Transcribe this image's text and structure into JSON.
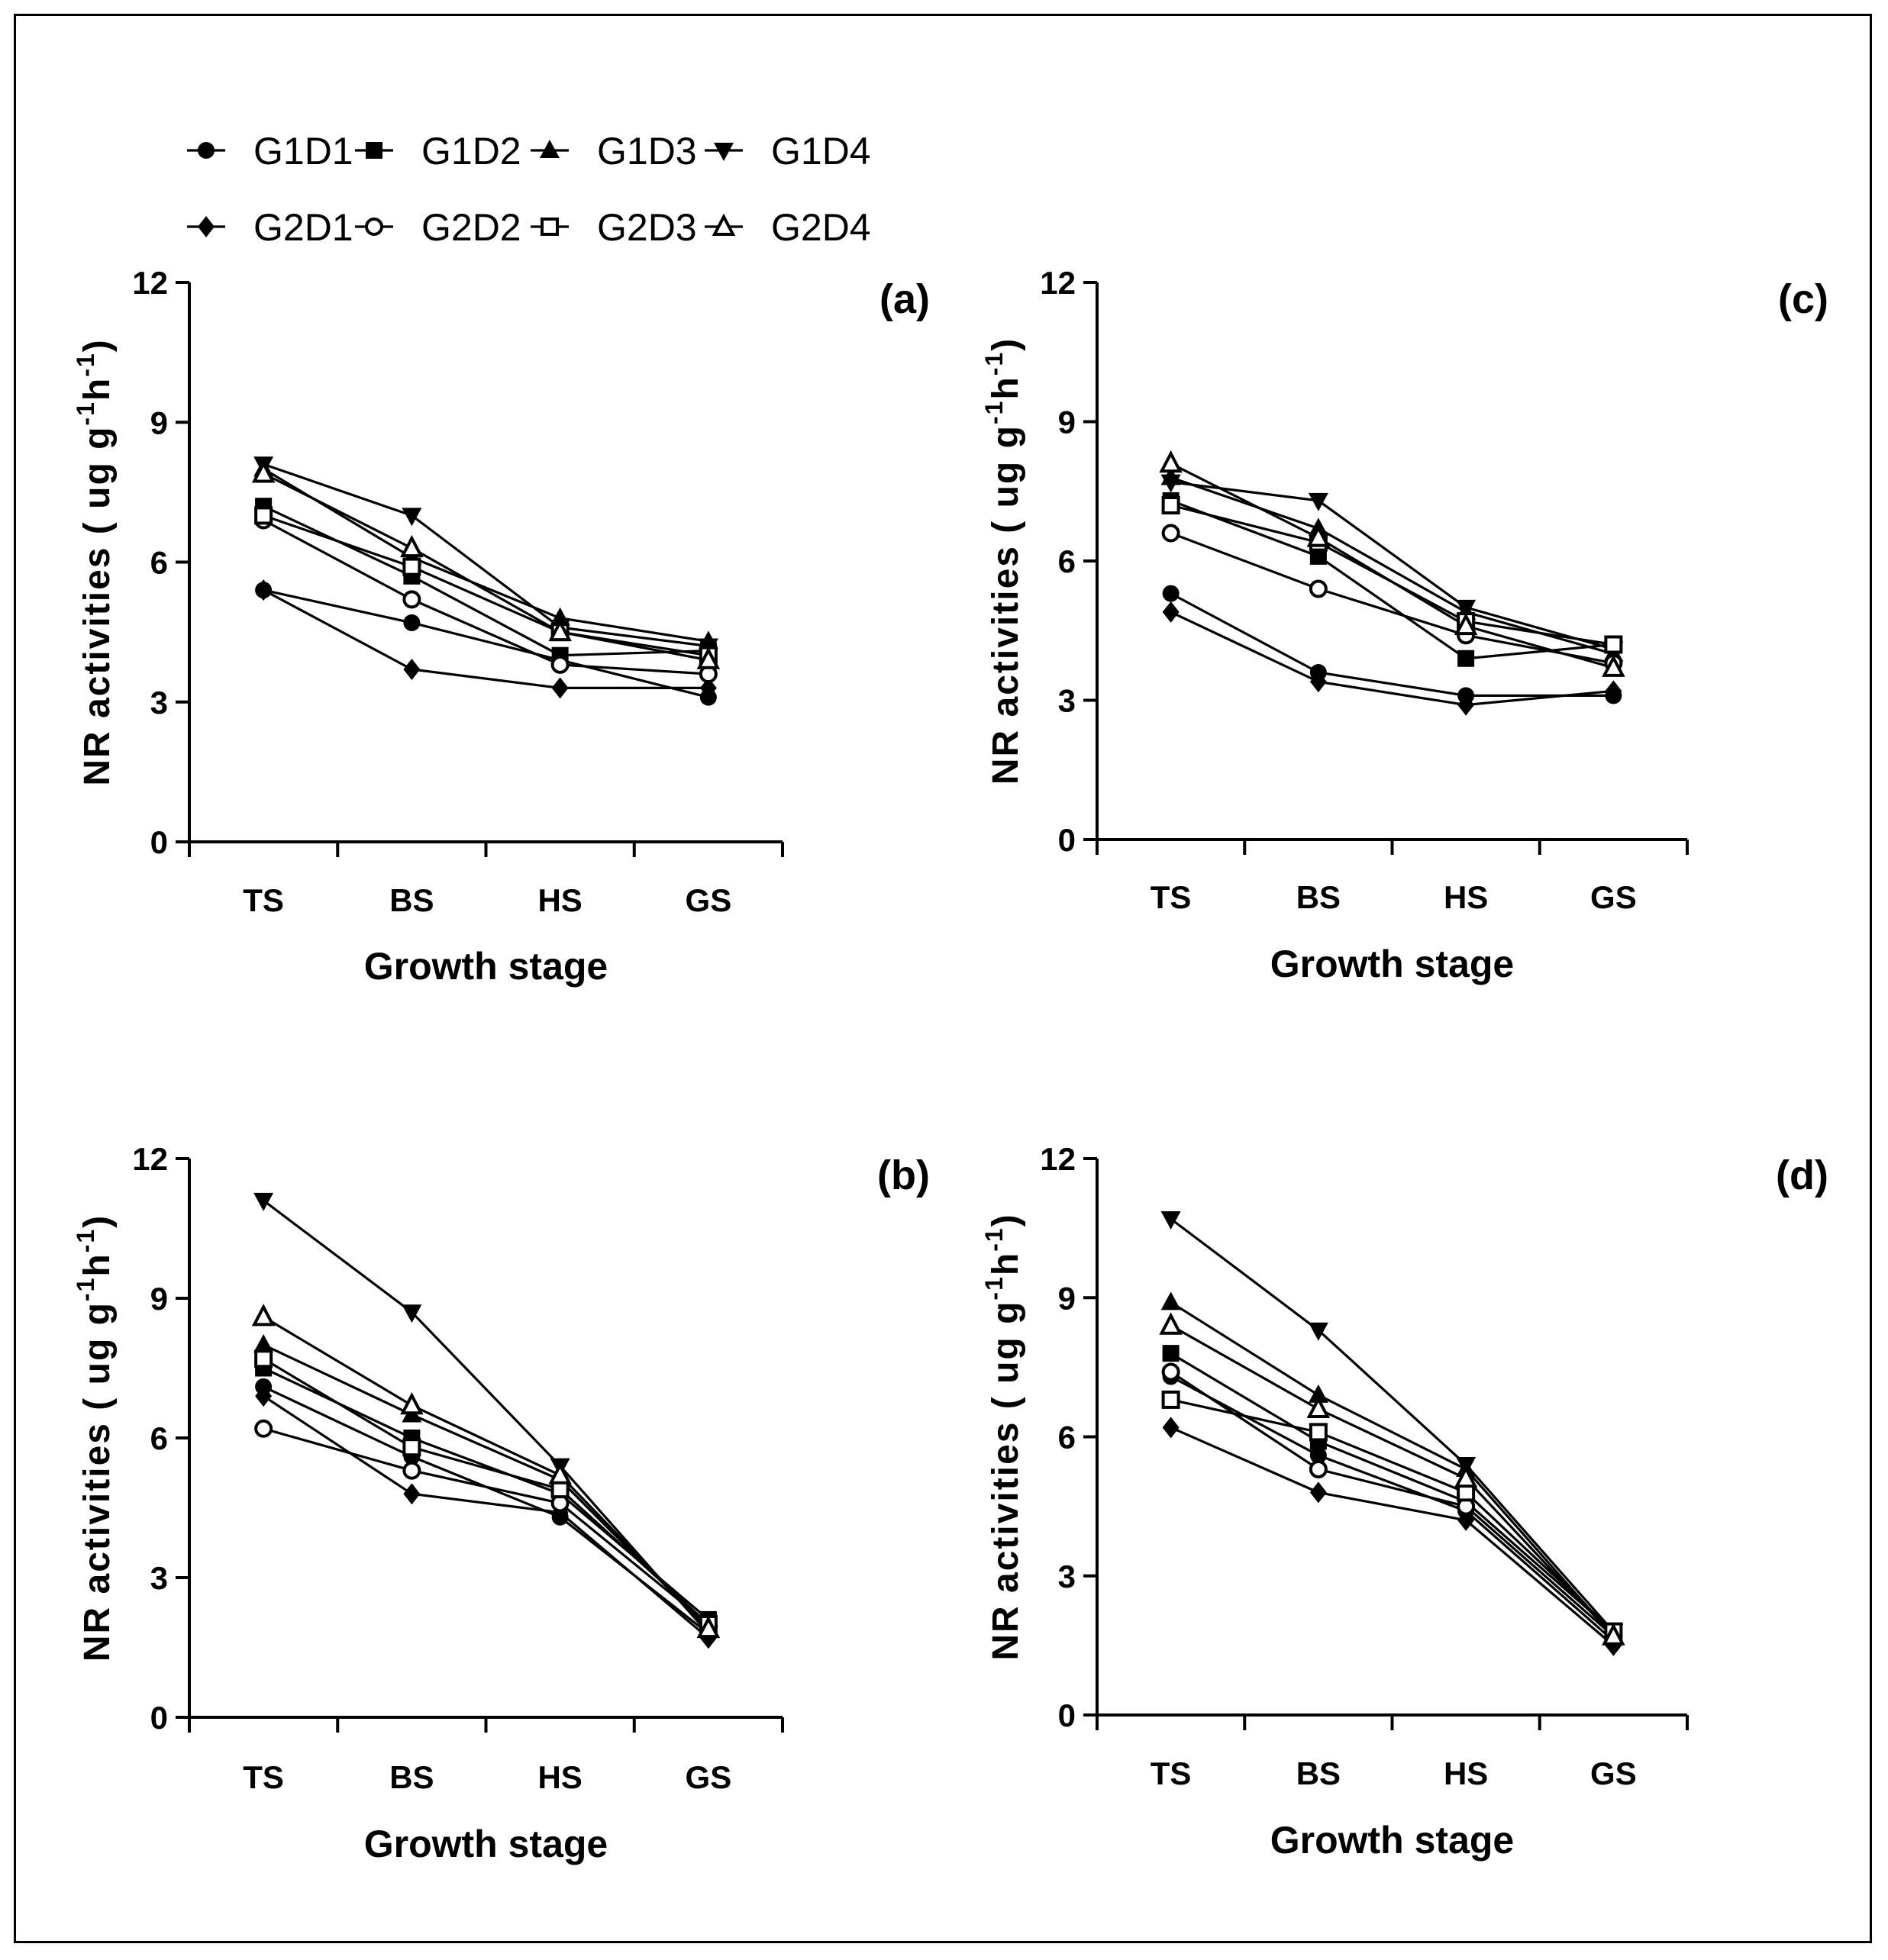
{
  "legend": {
    "items": [
      {
        "key": "G1D1",
        "label": "G1D1",
        "marker": "circle-filled"
      },
      {
        "key": "G1D2",
        "label": "G1D2",
        "marker": "square-filled"
      },
      {
        "key": "G1D3",
        "label": "G1D3",
        "marker": "triangle-up-filled"
      },
      {
        "key": "G1D4",
        "label": "G1D4",
        "marker": "triangle-down-filled"
      },
      {
        "key": "G2D1",
        "label": "G2D1",
        "marker": "diamond-filled"
      },
      {
        "key": "G2D2",
        "label": "G2D2",
        "marker": "circle-open"
      },
      {
        "key": "G2D3",
        "label": "G2D3",
        "marker": "square-open"
      },
      {
        "key": "G2D4",
        "label": "G2D4",
        "marker": "triangle-up-open"
      }
    ]
  },
  "chart_data": [
    {
      "type": "line",
      "panel_label": "(a)",
      "xlabel": "Growth stage",
      "ylabel_main": "NR activities",
      "ylabel_unit": "( ug g-1h-1)",
      "ylabel_parts": [
        "NR activities",
        "( ug g",
        "-1",
        "h",
        "-1",
        ")"
      ],
      "categories": [
        "TS",
        "BS",
        "HS",
        "GS"
      ],
      "ylim": [
        0,
        12
      ],
      "yticks": [
        0,
        3,
        6,
        9,
        12
      ],
      "ytick_labels": [
        "0",
        "3",
        "6",
        "9",
        "12"
      ],
      "series": [
        {
          "name": "G1D1",
          "values": [
            5.4,
            4.7,
            3.9,
            3.1
          ]
        },
        {
          "name": "G1D2",
          "values": [
            7.2,
            5.7,
            4.0,
            4.1
          ]
        },
        {
          "name": "G1D3",
          "values": [
            8.0,
            6.1,
            4.8,
            4.3
          ]
        },
        {
          "name": "G1D4",
          "values": [
            8.1,
            7.0,
            4.6,
            4.2
          ]
        },
        {
          "name": "G2D1",
          "values": [
            5.4,
            3.7,
            3.3,
            3.3
          ]
        },
        {
          "name": "G2D2",
          "values": [
            6.9,
            5.2,
            3.8,
            3.6
          ]
        },
        {
          "name": "G2D3",
          "values": [
            7.0,
            5.9,
            4.5,
            4.0
          ]
        },
        {
          "name": "G2D4",
          "values": [
            7.9,
            6.3,
            4.5,
            3.9
          ]
        }
      ]
    },
    {
      "type": "line",
      "panel_label": "(c)",
      "xlabel": "Growth stage",
      "ylabel_main": "NR activities",
      "ylabel_unit": "( ug g-1h-1)",
      "ylabel_parts": [
        "NR activities",
        "( ug g",
        "-1",
        "h",
        "-1",
        ")"
      ],
      "categories": [
        "TS",
        "BS",
        "HS",
        "GS"
      ],
      "ylim": [
        0,
        12
      ],
      "yticks": [
        0,
        3,
        6,
        9,
        12
      ],
      "ytick_labels": [
        "0",
        "3",
        "6",
        "9",
        "12"
      ],
      "series": [
        {
          "name": "G1D1",
          "values": [
            5.3,
            3.6,
            3.1,
            3.1
          ]
        },
        {
          "name": "G1D2",
          "values": [
            7.3,
            6.1,
            3.9,
            4.2
          ]
        },
        {
          "name": "G1D3",
          "values": [
            7.8,
            6.7,
            4.9,
            4.0
          ]
        },
        {
          "name": "G1D4",
          "values": [
            7.7,
            7.3,
            5.0,
            4.1
          ]
        },
        {
          "name": "G2D1",
          "values": [
            4.9,
            3.4,
            2.9,
            3.2
          ]
        },
        {
          "name": "G2D2",
          "values": [
            6.6,
            5.4,
            4.4,
            3.8
          ]
        },
        {
          "name": "G2D3",
          "values": [
            7.2,
            6.4,
            4.7,
            4.2
          ]
        },
        {
          "name": "G2D4",
          "values": [
            8.1,
            6.5,
            4.6,
            3.7
          ]
        }
      ]
    },
    {
      "type": "line",
      "panel_label": "(b)",
      "xlabel": "Growth stage",
      "ylabel_main": "NR activities",
      "ylabel_unit": "( ug g-1h-1)",
      "ylabel_parts": [
        "NR activities",
        "( ug g",
        "-1",
        "h",
        "-1",
        ")"
      ],
      "categories": [
        "TS",
        "BS",
        "HS",
        "GS"
      ],
      "ylim": [
        0,
        12
      ],
      "yticks": [
        0,
        3,
        6,
        9,
        12
      ],
      "ytick_labels": [
        "0",
        "3",
        "6",
        "9",
        "12"
      ],
      "series": [
        {
          "name": "G1D1",
          "values": [
            7.1,
            5.6,
            4.3,
            1.8
          ]
        },
        {
          "name": "G1D2",
          "values": [
            7.5,
            6.0,
            4.8,
            2.1
          ]
        },
        {
          "name": "G1D3",
          "values": [
            8.0,
            6.5,
            5.1,
            1.9
          ]
        },
        {
          "name": "G1D4",
          "values": [
            11.1,
            8.7,
            5.4,
            1.8
          ]
        },
        {
          "name": "G2D1",
          "values": [
            6.9,
            4.8,
            4.4,
            1.7
          ]
        },
        {
          "name": "G2D2",
          "values": [
            6.2,
            5.3,
            4.6,
            2.0
          ]
        },
        {
          "name": "G2D3",
          "values": [
            7.7,
            5.8,
            4.9,
            2.0
          ]
        },
        {
          "name": "G2D4",
          "values": [
            8.6,
            6.7,
            5.2,
            1.9
          ]
        }
      ]
    },
    {
      "type": "line",
      "panel_label": "(d)",
      "xlabel": "Growth stage",
      "ylabel_main": "NR activities",
      "ylabel_unit": "( ug g-1h-1)",
      "ylabel_parts": [
        "NR activities",
        "( ug g",
        "-1",
        "h",
        "-1",
        ")"
      ],
      "categories": [
        "TS",
        "BS",
        "HS",
        "GS"
      ],
      "ylim": [
        0,
        12
      ],
      "yticks": [
        0,
        3,
        6,
        9,
        12
      ],
      "ytick_labels": [
        "0",
        "3",
        "6",
        "9",
        "12"
      ],
      "series": [
        {
          "name": "G1D1",
          "values": [
            7.3,
            5.6,
            4.4,
            1.6
          ]
        },
        {
          "name": "G1D2",
          "values": [
            7.8,
            5.9,
            4.6,
            1.8
          ]
        },
        {
          "name": "G1D3",
          "values": [
            8.9,
            6.9,
            5.3,
            1.7
          ]
        },
        {
          "name": "G1D4",
          "values": [
            10.7,
            8.3,
            5.4,
            1.8
          ]
        },
        {
          "name": "G2D1",
          "values": [
            6.2,
            4.8,
            4.2,
            1.5
          ]
        },
        {
          "name": "G2D2",
          "values": [
            7.4,
            5.3,
            4.5,
            1.7
          ]
        },
        {
          "name": "G2D3",
          "values": [
            6.8,
            6.1,
            4.8,
            1.8
          ]
        },
        {
          "name": "G2D4",
          "values": [
            8.4,
            6.6,
            5.1,
            1.7
          ]
        }
      ]
    }
  ]
}
